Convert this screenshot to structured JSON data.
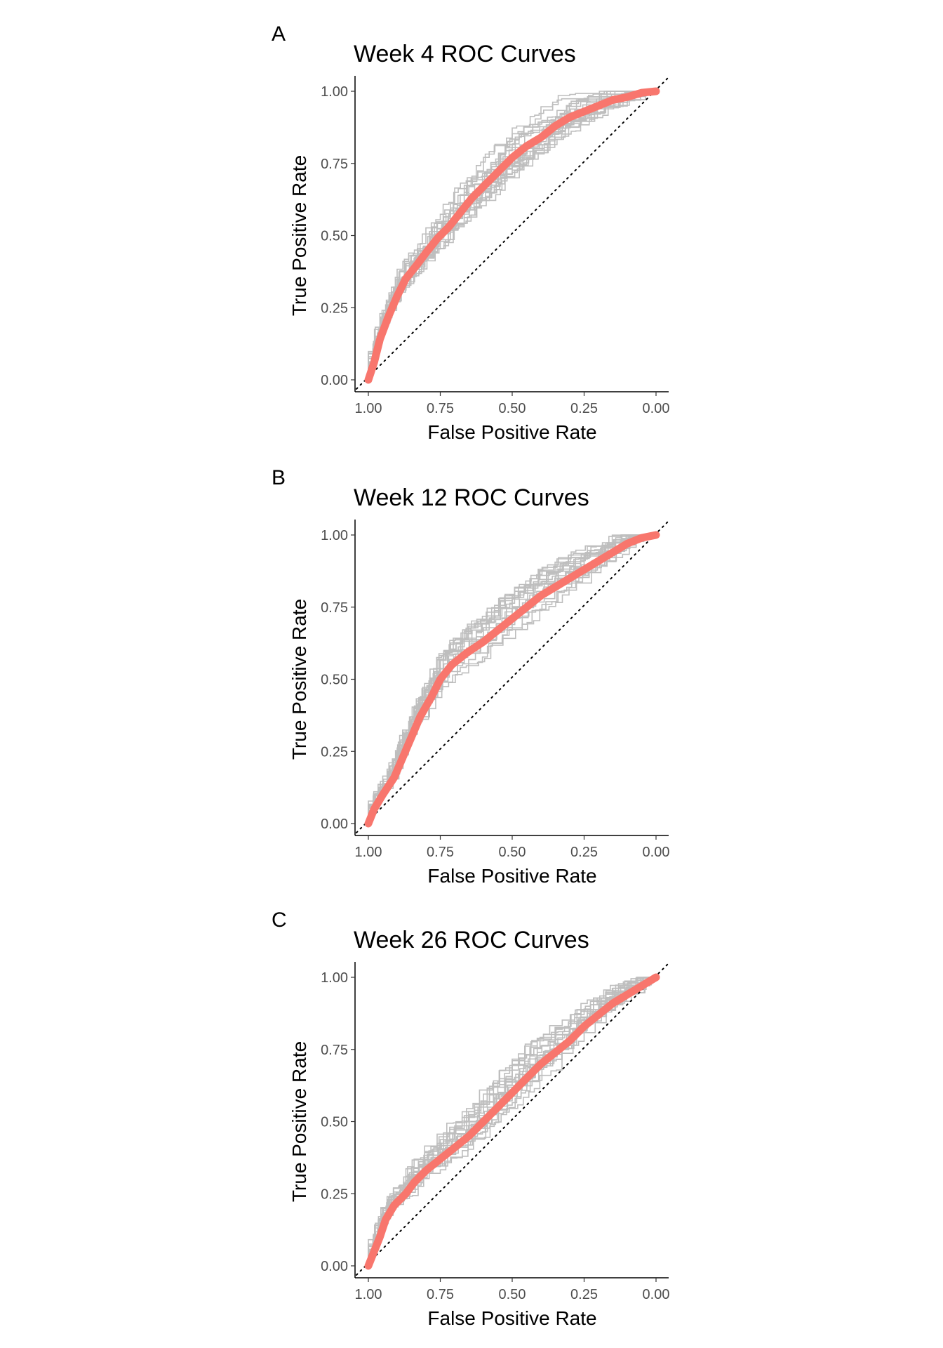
{
  "figure": {
    "panels": [
      {
        "letter": "A",
        "chart_data": {
          "type": "line",
          "title": "Week 4 ROC Curves",
          "xlabel": "False Positive Rate",
          "ylabel": "True Positive Rate",
          "xlim": [
            1.0,
            0.0
          ],
          "ylim": [
            0.0,
            1.0
          ],
          "x_reversed": true,
          "xticks": [
            "1.00",
            "0.75",
            "0.50",
            "0.25",
            "0.00"
          ],
          "yticks": [
            "0.00",
            "0.25",
            "0.50",
            "0.75",
            "1.00"
          ],
          "grid": false,
          "reference_line": {
            "style": "dotted",
            "from": [
              1.0,
              0.0
            ],
            "to": [
              0.0,
              1.0
            ]
          },
          "mean_curve": {
            "color": "#f8766d",
            "points": [
              [
                1.0,
                0.0
              ],
              [
                0.98,
                0.06
              ],
              [
                0.96,
                0.14
              ],
              [
                0.93,
                0.22
              ],
              [
                0.9,
                0.29
              ],
              [
                0.87,
                0.35
              ],
              [
                0.83,
                0.4
              ],
              [
                0.8,
                0.44
              ],
              [
                0.76,
                0.49
              ],
              [
                0.72,
                0.53
              ],
              [
                0.68,
                0.58
              ],
              [
                0.64,
                0.63
              ],
              [
                0.6,
                0.67
              ],
              [
                0.55,
                0.72
              ],
              [
                0.5,
                0.77
              ],
              [
                0.45,
                0.81
              ],
              [
                0.4,
                0.84
              ],
              [
                0.35,
                0.88
              ],
              [
                0.3,
                0.91
              ],
              [
                0.25,
                0.93
              ],
              [
                0.2,
                0.95
              ],
              [
                0.15,
                0.97
              ],
              [
                0.1,
                0.98
              ],
              [
                0.05,
                0.995
              ],
              [
                0.0,
                1.0
              ]
            ]
          },
          "replicate_curves": {
            "color": "#bebebe",
            "count": 20
          }
        }
      },
      {
        "letter": "B",
        "chart_data": {
          "type": "line",
          "title": "Week 12 ROC Curves",
          "xlabel": "False Positive Rate",
          "ylabel": "True Positive Rate",
          "xlim": [
            1.0,
            0.0
          ],
          "ylim": [
            0.0,
            1.0
          ],
          "x_reversed": true,
          "xticks": [
            "1.00",
            "0.75",
            "0.50",
            "0.25",
            "0.00"
          ],
          "yticks": [
            "0.00",
            "0.25",
            "0.50",
            "0.75",
            "1.00"
          ],
          "grid": false,
          "reference_line": {
            "style": "dotted",
            "from": [
              1.0,
              0.0
            ],
            "to": [
              0.0,
              1.0
            ]
          },
          "mean_curve": {
            "color": "#f8766d",
            "points": [
              [
                1.0,
                0.0
              ],
              [
                0.98,
                0.05
              ],
              [
                0.95,
                0.1
              ],
              [
                0.91,
                0.16
              ],
              [
                0.88,
                0.23
              ],
              [
                0.85,
                0.3
              ],
              [
                0.82,
                0.37
              ],
              [
                0.78,
                0.44
              ],
              [
                0.75,
                0.5
              ],
              [
                0.71,
                0.55
              ],
              [
                0.66,
                0.59
              ],
              [
                0.6,
                0.63
              ],
              [
                0.55,
                0.67
              ],
              [
                0.5,
                0.71
              ],
              [
                0.45,
                0.75
              ],
              [
                0.4,
                0.79
              ],
              [
                0.35,
                0.82
              ],
              [
                0.3,
                0.85
              ],
              [
                0.25,
                0.88
              ],
              [
                0.2,
                0.91
              ],
              [
                0.15,
                0.94
              ],
              [
                0.1,
                0.97
              ],
              [
                0.05,
                0.99
              ],
              [
                0.0,
                1.0
              ]
            ]
          },
          "replicate_curves": {
            "color": "#bebebe",
            "count": 20
          }
        }
      },
      {
        "letter": "C",
        "chart_data": {
          "type": "line",
          "title": "Week 26 ROC Curves",
          "xlabel": "False Positive Rate",
          "ylabel": "True Positive Rate",
          "xlim": [
            1.0,
            0.0
          ],
          "ylim": [
            0.0,
            1.0
          ],
          "x_reversed": true,
          "xticks": [
            "1.00",
            "0.75",
            "0.50",
            "0.25",
            "0.00"
          ],
          "yticks": [
            "0.00",
            "0.25",
            "0.50",
            "0.75",
            "1.00"
          ],
          "grid": false,
          "reference_line": {
            "style": "dotted",
            "from": [
              1.0,
              0.0
            ],
            "to": [
              0.0,
              1.0
            ]
          },
          "mean_curve": {
            "color": "#f8766d",
            "points": [
              [
                1.0,
                0.0
              ],
              [
                0.98,
                0.05
              ],
              [
                0.96,
                0.1
              ],
              [
                0.94,
                0.16
              ],
              [
                0.91,
                0.21
              ],
              [
                0.87,
                0.25
              ],
              [
                0.84,
                0.29
              ],
              [
                0.8,
                0.33
              ],
              [
                0.75,
                0.37
              ],
              [
                0.7,
                0.41
              ],
              [
                0.65,
                0.45
              ],
              [
                0.6,
                0.5
              ],
              [
                0.55,
                0.55
              ],
              [
                0.5,
                0.6
              ],
              [
                0.45,
                0.65
              ],
              [
                0.4,
                0.7
              ],
              [
                0.35,
                0.74
              ],
              [
                0.3,
                0.78
              ],
              [
                0.25,
                0.83
              ],
              [
                0.2,
                0.87
              ],
              [
                0.15,
                0.91
              ],
              [
                0.1,
                0.94
              ],
              [
                0.05,
                0.97
              ],
              [
                0.0,
                1.0
              ]
            ]
          },
          "replicate_curves": {
            "color": "#bebebe",
            "count": 20
          }
        }
      }
    ]
  }
}
